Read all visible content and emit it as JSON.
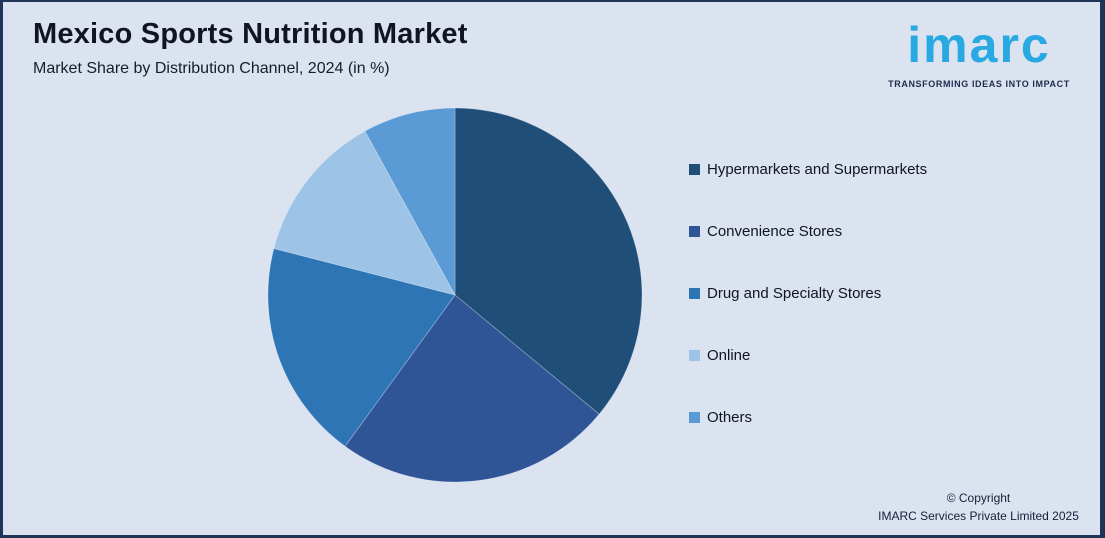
{
  "page": {
    "title": "Mexico Sports Nutrition Market",
    "subtitle": "Market Share by Distribution Channel, 2024 (in %)",
    "background_color": "#dbe3f1",
    "border_color": "#1f3456"
  },
  "logo": {
    "brand": "imarc",
    "tagline": "TRANSFORMING IDEAS INTO IMPACT",
    "brand_color": "#29a9e2",
    "tagline_color": "#1c2c4c"
  },
  "footer": {
    "copyright_line1": "© Copyright",
    "copyright_line2": "IMARC Services Private Limited 2025"
  },
  "chart_data": {
    "type": "pie",
    "title": "Mexico Sports Nutrition Market",
    "subtitle": "Market Share by Distribution Channel, 2024 (in %)",
    "unit": "percent",
    "start_angle": "12 o'clock, clockwise",
    "legend_position": "right",
    "data_labels_shown": false,
    "values_note": "estimated from slice angles; no numeric labels shown in chart",
    "slices": [
      {
        "label": "Hypermarkets and Supermarkets",
        "value": 36,
        "color": "#1f4e79"
      },
      {
        "label": "Convenience Stores",
        "value": 24,
        "color": "#2f5597"
      },
      {
        "label": "Drug and Specialty Stores",
        "value": 19,
        "color": "#2e75b6"
      },
      {
        "label": "Online",
        "value": 13,
        "color": "#9dc3e6"
      },
      {
        "label": "Others",
        "value": 8,
        "color": "#5b9bd5"
      }
    ]
  }
}
